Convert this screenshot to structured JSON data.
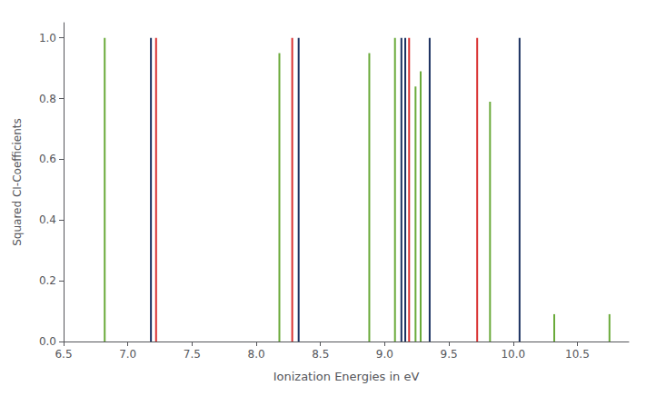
{
  "chart_data": {
    "type": "vlines",
    "xlabel": "Ionization Energies in eV",
    "ylabel": "Squared CI-Coefficients",
    "x": [
      6.82,
      7.18,
      7.22,
      8.18,
      8.28,
      8.33,
      8.88,
      9.08,
      9.13,
      9.16,
      9.19,
      9.24,
      9.28,
      9.35,
      9.72,
      9.82,
      10.05,
      10.32,
      10.75
    ],
    "values": [
      1.0,
      1.0,
      1.0,
      0.95,
      1.0,
      1.0,
      0.95,
      1.0,
      1.0,
      1.0,
      1.0,
      0.84,
      0.89,
      1.0,
      1.0,
      0.79,
      1.0,
      0.09,
      0.09
    ],
    "colors": [
      "#6aaa3a",
      "#1a3060",
      "#d93030",
      "#6aaa3a",
      "#d93030",
      "#1a3060",
      "#6aaa3a",
      "#6aaa3a",
      "#1a3060",
      "#1a3060",
      "#d93030",
      "#6aaa3a",
      "#6aaa3a",
      "#1a3060",
      "#d93030",
      "#6aaa3a",
      "#1a3060",
      "#6aaa3a",
      "#6aaa3a"
    ],
    "xlim": [
      6.5,
      10.9
    ],
    "ylim": [
      0,
      1.05
    ],
    "xticks": [
      6.5,
      {
        "value": 7.0,
        "label": "7.0"
      },
      7.5,
      {
        "value": 8.0,
        "label": "8.0"
      },
      8.5,
      {
        "value": 9.0,
        "label": "9.0"
      },
      9.5,
      {
        "value": 10.0,
        "label": "10.0"
      },
      10.5
    ],
    "yticks": [
      {
        "value": 0,
        "label": "0.0"
      },
      0.2,
      0.4,
      0.6,
      0.8,
      {
        "value": 1.0,
        "label": "1.0"
      }
    ],
    "grid": false
  }
}
